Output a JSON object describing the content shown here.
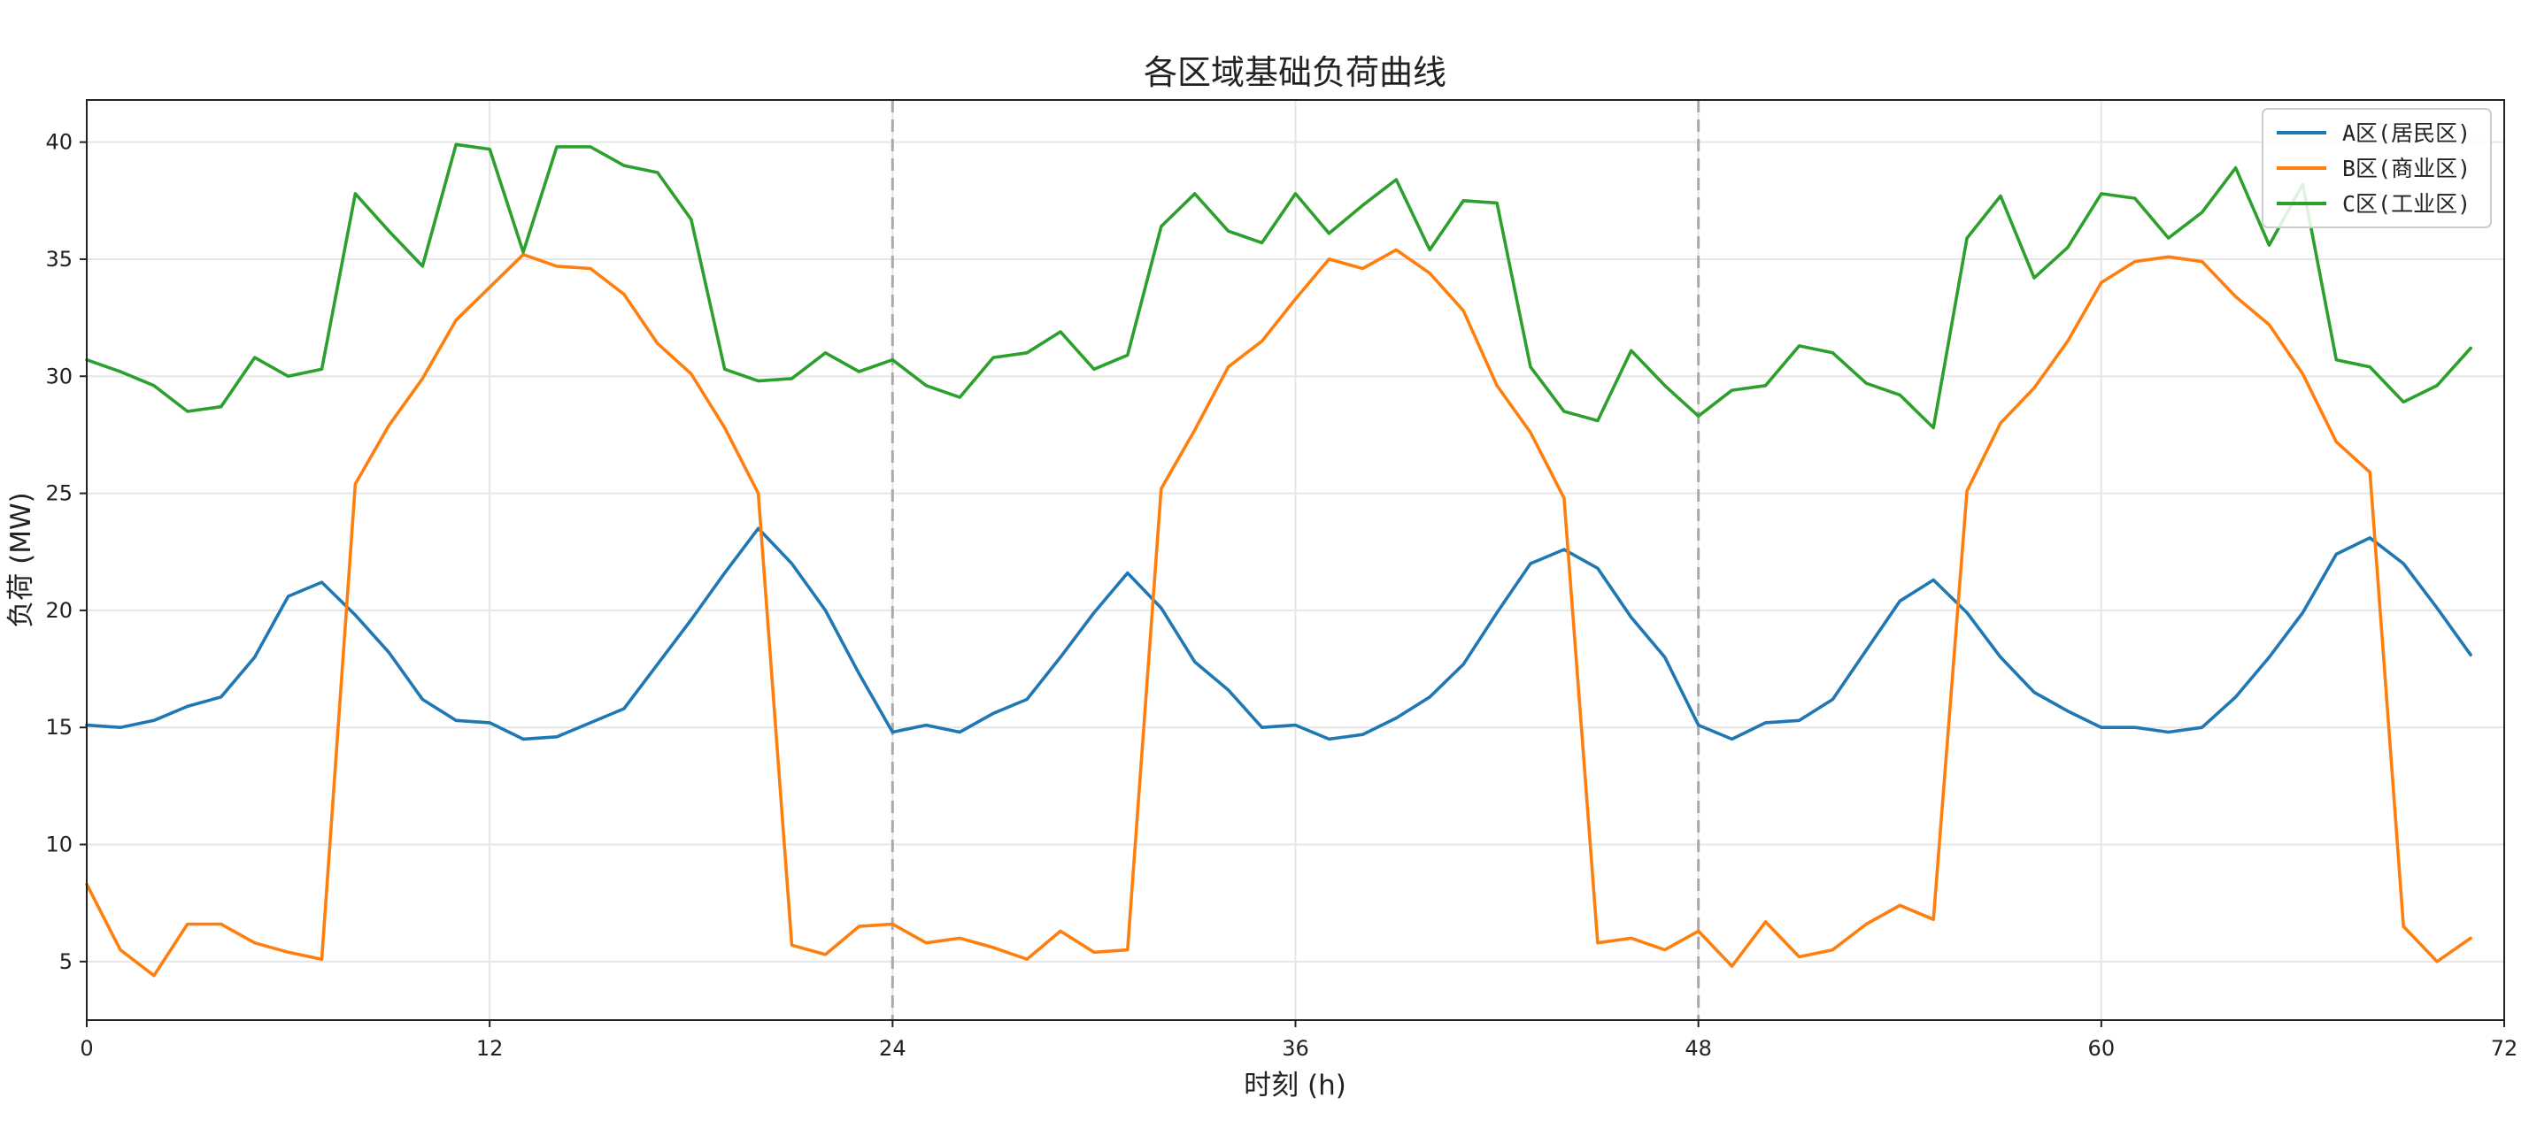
{
  "chart_data": {
    "type": "line",
    "title": "各区域基础负荷曲线",
    "xlabel": "时刻 (h)",
    "ylabel": "负荷 (MW)",
    "xlim": [
      0,
      72
    ],
    "ylim": [
      2.5,
      41.8
    ],
    "xticks": [
      0,
      12,
      24,
      36,
      48,
      60,
      72
    ],
    "yticks": [
      5,
      10,
      15,
      20,
      25,
      30,
      35,
      40
    ],
    "vlines": [
      24,
      48
    ],
    "grid": true,
    "legend_position": "top-right",
    "x": [
      0,
      1,
      2,
      3,
      4,
      5,
      6,
      7,
      8,
      9,
      10,
      11,
      12,
      13,
      14,
      15,
      16,
      17,
      18,
      19,
      20,
      21,
      22,
      23,
      24,
      25,
      26,
      27,
      28,
      29,
      30,
      31,
      32,
      33,
      34,
      35,
      36,
      37,
      38,
      39,
      40,
      41,
      42,
      43,
      44,
      45,
      46,
      47,
      48,
      49,
      50,
      51,
      52,
      53,
      54,
      55,
      56,
      57,
      58,
      59,
      60,
      61,
      62,
      63,
      64,
      65,
      66,
      67,
      68,
      69,
      70,
      71
    ],
    "series": [
      {
        "name": "A区(居民区)",
        "color": "#1f77b4",
        "values": [
          15.1,
          15.0,
          15.3,
          15.9,
          16.3,
          18.0,
          20.6,
          21.2,
          19.8,
          18.2,
          16.2,
          15.3,
          15.2,
          14.5,
          14.6,
          15.2,
          15.8,
          17.7,
          19.6,
          21.6,
          23.5,
          22.0,
          20.0,
          17.3,
          14.8,
          15.1,
          14.8,
          15.6,
          16.2,
          18.0,
          19.9,
          21.6,
          20.1,
          17.8,
          16.6,
          15.0,
          15.1,
          14.5,
          14.7,
          15.4,
          16.3,
          17.7,
          19.9,
          22.0,
          22.6,
          21.8,
          19.7,
          18.0,
          15.1,
          14.5,
          15.2,
          15.3,
          16.2,
          18.3,
          20.4,
          21.3,
          19.9,
          18.0,
          16.5,
          15.7,
          15.0,
          15.0,
          14.8,
          15.0,
          16.3,
          18.0,
          19.9,
          22.4,
          23.1,
          22.0,
          20.1,
          18.1
        ]
      },
      {
        "name": "B区(商业区)",
        "color": "#ff7f0e",
        "values": [
          8.3,
          5.5,
          4.4,
          6.6,
          6.6,
          5.8,
          5.4,
          5.1,
          25.4,
          27.9,
          29.9,
          32.4,
          33.8,
          35.2,
          34.7,
          34.6,
          33.5,
          31.4,
          30.1,
          27.8,
          25.0,
          5.7,
          5.3,
          6.5,
          6.6,
          5.8,
          6.0,
          5.6,
          5.1,
          6.3,
          5.4,
          5.5,
          25.2,
          27.7,
          30.4,
          31.5,
          33.3,
          35.0,
          34.6,
          35.4,
          34.4,
          32.8,
          29.6,
          27.6,
          24.8,
          5.8,
          6.0,
          5.5,
          6.3,
          4.8,
          6.7,
          5.2,
          5.5,
          6.6,
          7.4,
          6.8,
          25.1,
          28.0,
          29.5,
          31.5,
          34.0,
          34.9,
          35.1,
          34.9,
          33.4,
          32.2,
          30.1,
          27.2,
          25.9,
          6.5,
          5.0,
          6.0
        ]
      },
      {
        "name": "C区(工业区)",
        "color": "#2ca02c",
        "values": [
          30.7,
          30.2,
          29.6,
          28.5,
          28.7,
          30.8,
          30.0,
          30.3,
          37.8,
          36.2,
          34.7,
          39.9,
          39.7,
          35.3,
          39.8,
          39.8,
          39.0,
          38.7,
          36.7,
          30.3,
          29.8,
          29.9,
          31.0,
          30.2,
          30.7,
          29.6,
          29.1,
          30.8,
          31.0,
          31.9,
          30.3,
          30.9,
          36.4,
          37.8,
          36.2,
          35.7,
          37.8,
          36.1,
          37.3,
          38.4,
          35.4,
          37.5,
          37.4,
          30.4,
          28.5,
          28.1,
          31.1,
          29.6,
          28.3,
          29.4,
          29.6,
          31.3,
          31.0,
          29.7,
          29.2,
          27.8,
          35.9,
          37.7,
          34.2,
          35.5,
          37.8,
          37.6,
          35.9,
          37.0,
          38.9,
          35.6,
          38.2,
          30.7,
          30.4,
          28.9,
          29.6,
          31.2
        ]
      }
    ]
  }
}
